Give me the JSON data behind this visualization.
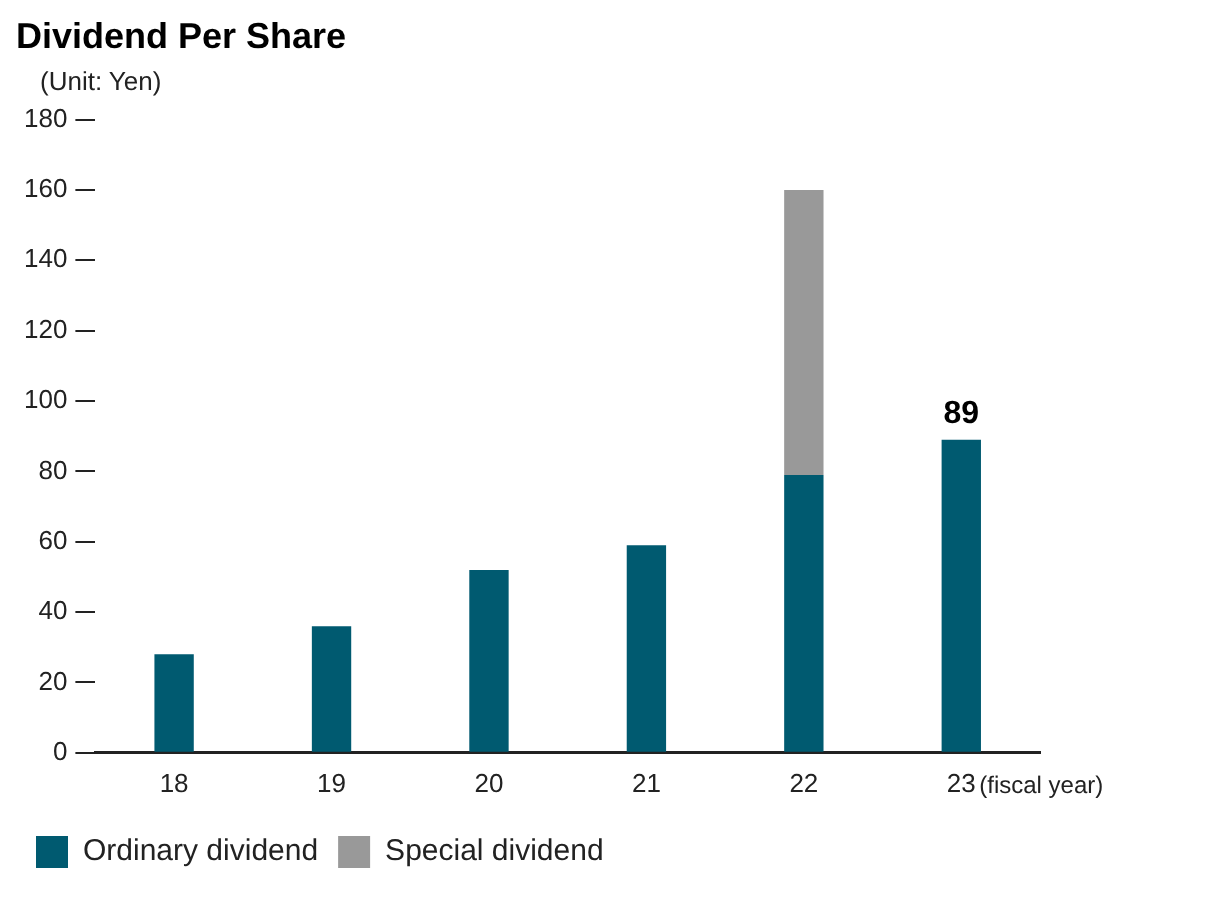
{
  "chart_data": {
    "type": "bar",
    "title": "Dividend Per Share",
    "subtitle": "(Unit: Yen)",
    "xlabel": "(fiscal year)",
    "categories": [
      "18",
      "19",
      "20",
      "21",
      "22",
      "23"
    ],
    "stacked": true,
    "series": [
      {
        "name": "Ordinary dividend",
        "color": "#005a70",
        "values": [
          28,
          36,
          52,
          59,
          79,
          89
        ],
        "value_labels": [
          null,
          null,
          null,
          null,
          null,
          "89"
        ]
      },
      {
        "name": "Special dividend",
        "color": "#999999",
        "values": [
          null,
          null,
          null,
          null,
          81,
          null
        ]
      }
    ],
    "ylim": [
      0,
      180
    ],
    "yticks": [
      0,
      20,
      40,
      60,
      80,
      100,
      120,
      140,
      160,
      180
    ],
    "grid": false,
    "legend": "bottom left"
  }
}
